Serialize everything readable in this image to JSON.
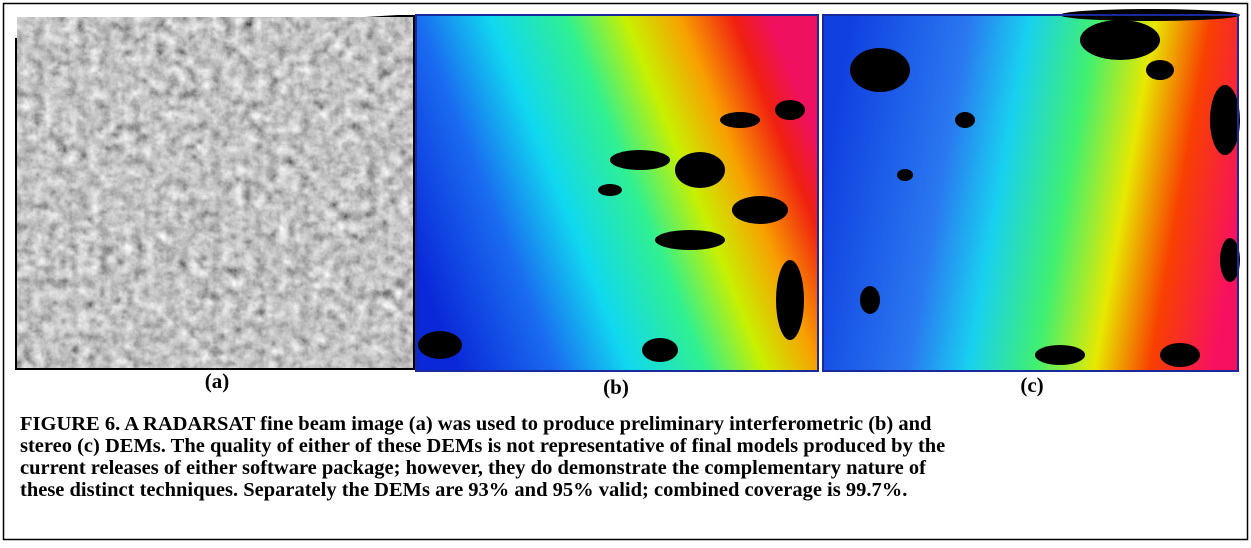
{
  "figure": {
    "panels": [
      {
        "label": "(a)"
      },
      {
        "label": "(b)"
      },
      {
        "label": "(c)"
      }
    ],
    "caption_lines": [
      "FIGURE 6. A RADARSAT fine beam image (a) was used to produce preliminary interferometric (b) and",
      "stereo (c) DEMs. The quality of either of these DEMs is not representative of final models produced by the",
      "current releases of either software package; however, they do demonstrate the complementary nature of",
      "these distinct techniques. Separately the DEMs are 93% and 95% valid; combined coverage is 99.7%."
    ]
  }
}
